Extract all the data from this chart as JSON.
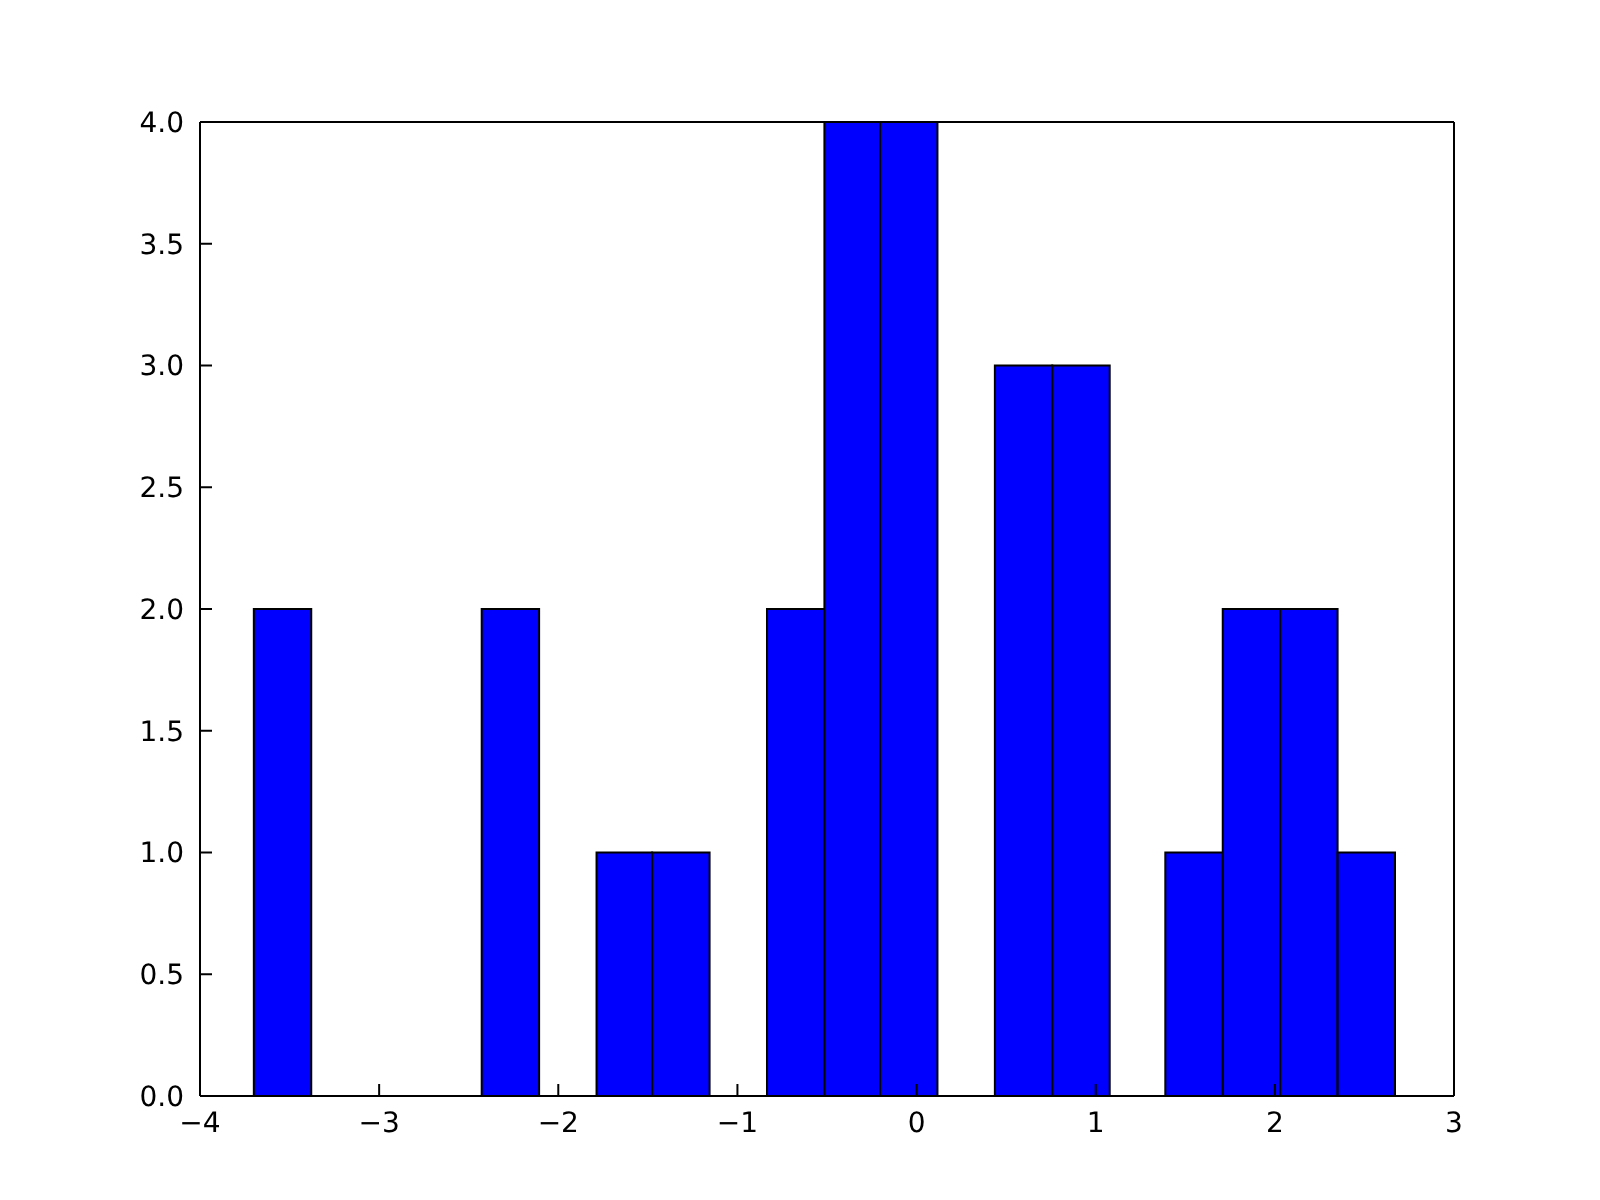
{
  "chart_data": {
    "type": "histogram",
    "bins": [
      -3.7,
      -3.38,
      -2.43,
      -2.11,
      -1.79,
      -1.48,
      -1.16,
      -0.84,
      -0.52,
      -0.21,
      0.11,
      0.43,
      0.75,
      1.07,
      1.38,
      1.7,
      2.02,
      2.34,
      2.66
    ],
    "values": [
      2,
      0,
      2,
      0,
      1,
      1,
      0,
      2,
      4,
      4,
      0,
      3,
      3,
      0,
      1,
      2,
      2,
      1
    ],
    "color": "#0000ff",
    "xlim": [
      -4,
      3
    ],
    "xticks": [
      {
        "value": -4,
        "label": "−4"
      },
      {
        "value": -3,
        "label": "−3"
      },
      {
        "value": -2,
        "label": "−2"
      },
      {
        "value": -1,
        "label": "−1"
      },
      0,
      1,
      2,
      3
    ],
    "ylim": [
      0,
      4
    ],
    "yticks": [
      {
        "value": 0,
        "label": "0.0"
      },
      {
        "value": 0.5,
        "label": "0.5"
      },
      {
        "value": 1,
        "label": "1.0"
      },
      {
        "value": 1.5,
        "label": "1.5"
      },
      {
        "value": 2,
        "label": "2.0"
      },
      {
        "value": 2.5,
        "label": "2.5"
      },
      {
        "value": 3,
        "label": "3.0"
      },
      {
        "value": 3.5,
        "label": "3.5"
      },
      {
        "value": 4,
        "label": "4.0"
      }
    ],
    "grid": false
  }
}
